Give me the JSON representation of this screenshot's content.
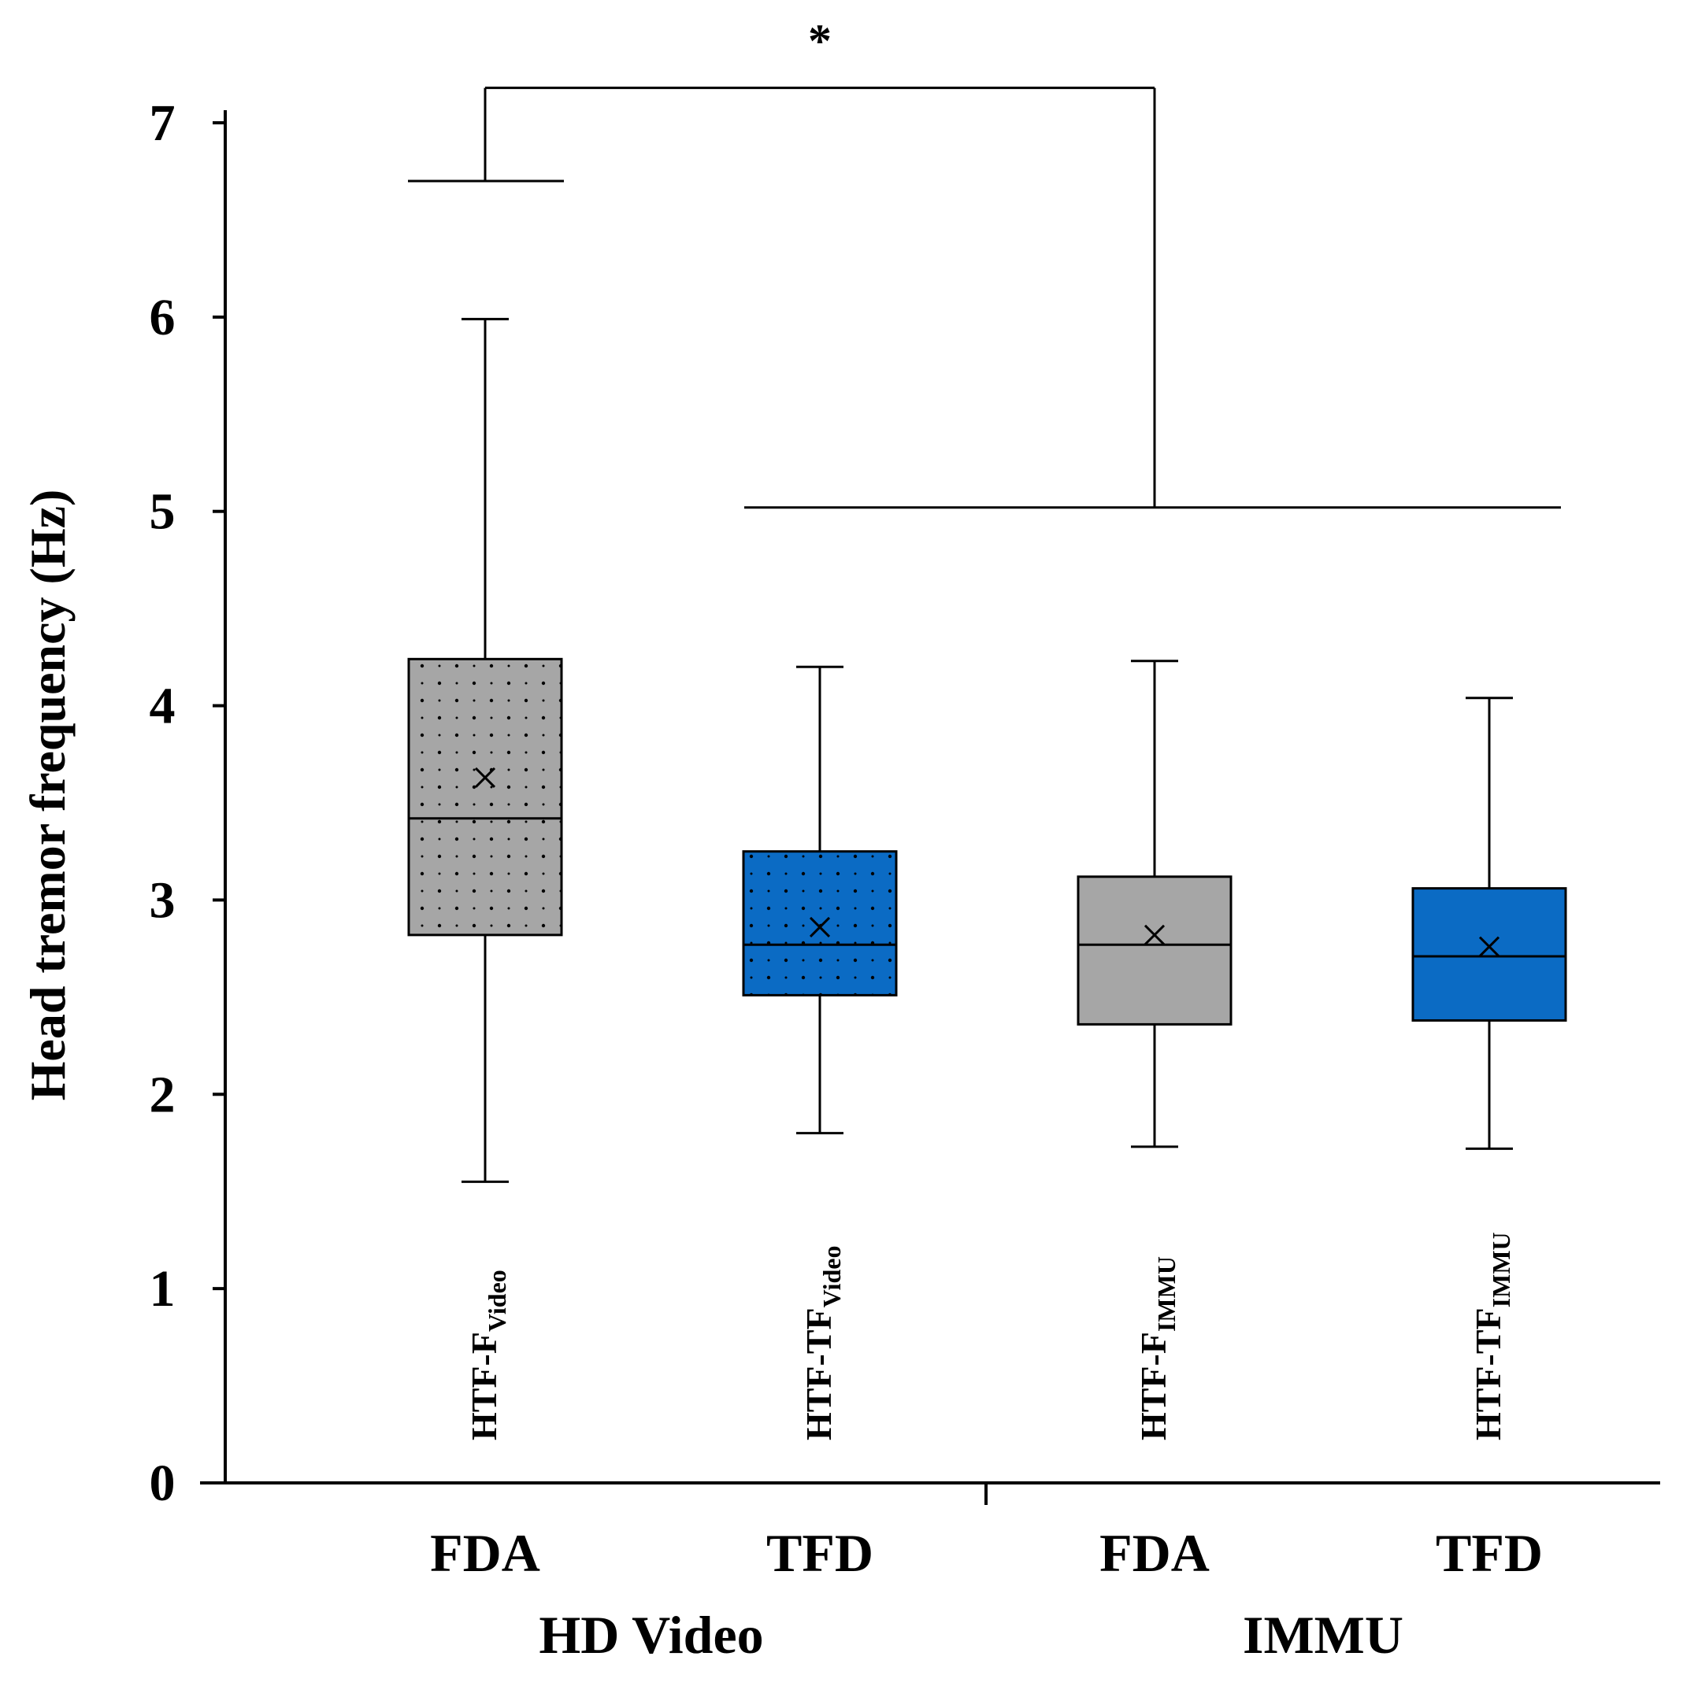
{
  "chart_data": {
    "type": "box",
    "ylabel": "Head tremor frequency (Hz)",
    "xlabel": "",
    "ylim": [
      0,
      7
    ],
    "yticks": [
      0,
      1,
      2,
      3,
      4,
      5,
      6,
      7
    ],
    "grid": false,
    "groups": [
      {
        "label": "HD Video",
        "categories": [
          "FDA",
          "TFD"
        ]
      },
      {
        "label": "IMMU",
        "categories": [
          "FDA",
          "TFD"
        ]
      }
    ],
    "boxes": [
      {
        "name": "HTF-F",
        "sub": "Video",
        "category": "FDA",
        "group": "HD Video",
        "fill": "#a6a6a6",
        "pattern": "dots",
        "whisker_low": 1.55,
        "q1": 2.82,
        "median": 3.42,
        "mean": 3.63,
        "q3": 4.24,
        "whisker_high": 5.99,
        "outliers": [
          6.7
        ]
      },
      {
        "name": "HTF-TF",
        "sub": "Video",
        "category": "TFD",
        "group": "HD Video",
        "fill": "#0b6bc4",
        "pattern": "dots",
        "whisker_low": 1.8,
        "q1": 2.51,
        "median": 2.77,
        "mean": 2.86,
        "q3": 3.25,
        "whisker_high": 4.2,
        "outliers": []
      },
      {
        "name": "HTF-F",
        "sub": "IMMU",
        "category": "FDA",
        "group": "IMMU",
        "fill": "#a6a6a6",
        "pattern": "none",
        "whisker_low": 1.73,
        "q1": 2.36,
        "median": 2.77,
        "mean": 2.82,
        "q3": 3.12,
        "whisker_high": 4.23,
        "outliers": []
      },
      {
        "name": "HTF-TF",
        "sub": "IMMU",
        "category": "TFD",
        "group": "IMMU",
        "fill": "#0b6bc4",
        "pattern": "none",
        "whisker_low": 1.72,
        "q1": 2.38,
        "median": 2.71,
        "mean": 2.76,
        "q3": 3.06,
        "whisker_high": 4.04,
        "outliers": []
      }
    ],
    "significance": {
      "text": "*",
      "from_box": 0,
      "to_boxes": [
        1,
        3
      ],
      "left_level": 6.7,
      "right_level": 5.02,
      "top_level": 7.18
    }
  }
}
